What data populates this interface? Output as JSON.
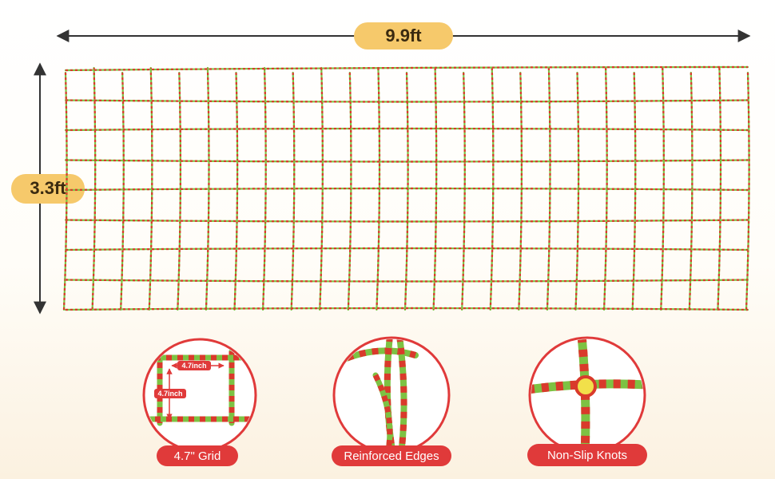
{
  "dimensions": {
    "width_label": "9.9ft",
    "height_label": "3.3ft"
  },
  "details": [
    {
      "label": "4.7\" Grid",
      "measures": [
        "4.7inch",
        "4.7inch"
      ]
    },
    {
      "label": "Reinforced Edges"
    },
    {
      "label": "Non-Slip Knots"
    }
  ]
}
